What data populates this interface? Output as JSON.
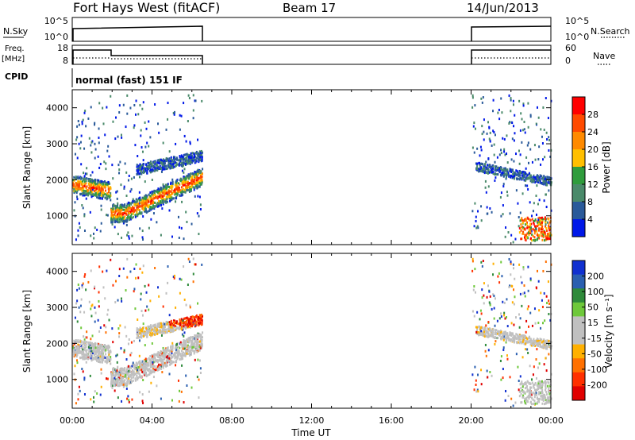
{
  "header": {
    "radar": "Fort Hays West (fitACF)",
    "beam": "Beam 17",
    "date": "14/Jun/2013"
  },
  "strips": {
    "nsky_label": "N.Sky",
    "nsky_ticks": [
      "10^5",
      "10^0"
    ],
    "nsearch_label": "N.Search",
    "freq_label": "Freq.",
    "freq_unit": "[MHz]",
    "freq_ticks": [
      "18",
      "8"
    ],
    "nave_ticks": [
      "60",
      "0"
    ],
    "nave_label": "Nave",
    "cpid_label": "CPID",
    "cpid_value": "normal (fast) 151 IF"
  },
  "chart_data": [
    {
      "type": "heatmap",
      "panel": "power",
      "ylabel": "Slant Range [km]",
      "yticks": [
        "4000",
        "3000",
        "2000",
        "1000"
      ],
      "ylim": [
        200,
        4500
      ],
      "xlim_hours": [
        0,
        24
      ],
      "colorbar_label": "Power [dB]",
      "colorbar_ticks": [
        "28",
        "24",
        "20",
        "16",
        "12",
        "8",
        "4"
      ],
      "colorbar_colors": [
        "#ff0000",
        "#ff4a00",
        "#ff8a00",
        "#ffbf00",
        "#2f9c3c",
        "#4a8a6a",
        "#2a5a9a",
        "#0018e8"
      ],
      "echo_bands": [
        {
          "t0": 0.0,
          "t1": 1.9,
          "r0": 1600,
          "r1": 2100
        },
        {
          "t0": 1.9,
          "t1": 6.5,
          "r0": 700,
          "r1": 2300
        },
        {
          "t0": 3.5,
          "t1": 6.5,
          "r0": 2300,
          "r1": 2800
        },
        {
          "t0": 20.2,
          "t1": 24.0,
          "r0": 1700,
          "r1": 2400
        },
        {
          "t0": 22.5,
          "t1": 24.0,
          "r0": 300,
          "r1": 1000
        }
      ]
    },
    {
      "type": "heatmap",
      "panel": "velocity",
      "ylabel": "Slant Range [km]",
      "yticks": [
        "4000",
        "3000",
        "2000",
        "1000"
      ],
      "ylim": [
        200,
        4500
      ],
      "xlim_hours": [
        0,
        24
      ],
      "colorbar_label": "Velocity [m s⁻¹]",
      "colorbar_ticks": [
        "200",
        "100",
        "50",
        "15",
        "-15",
        "-50",
        "-100",
        "-200"
      ],
      "colorbar_colors": [
        "#1030d0",
        "#2a5fb0",
        "#2e8a3a",
        "#6ec83a",
        "#c0c0c0",
        "#c0c0c0",
        "#ffb000",
        "#ff7000",
        "#ff3000",
        "#e00000"
      ],
      "xticks": [
        "00:00",
        "04:00",
        "08:00",
        "12:00",
        "16:00",
        "20:00",
        "00:00"
      ],
      "xlabel": "Time UT"
    }
  ]
}
